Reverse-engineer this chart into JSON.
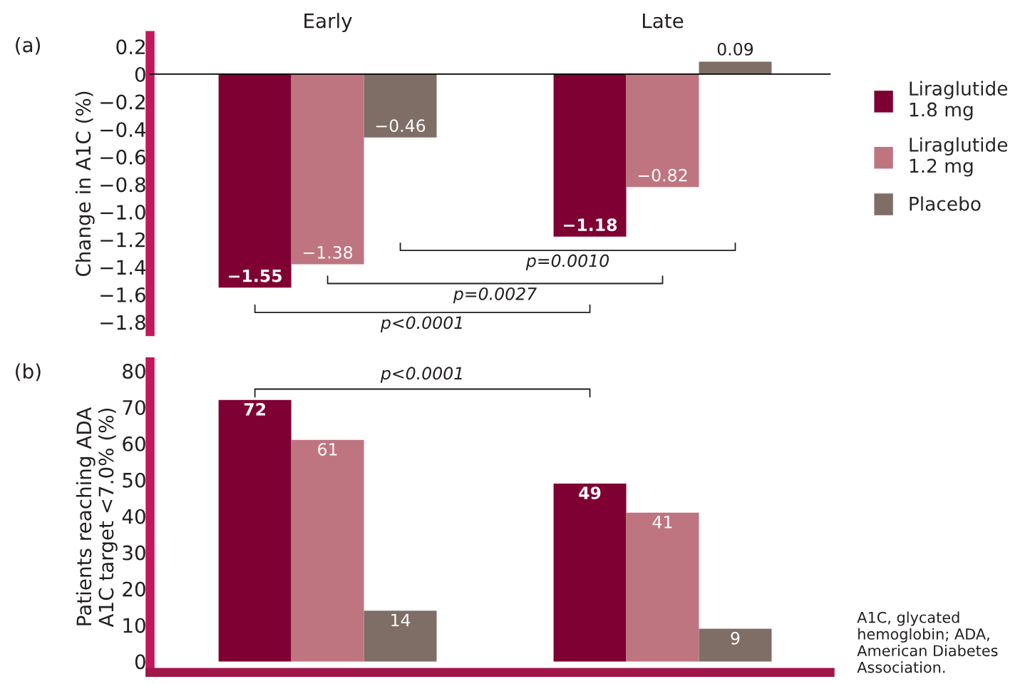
{
  "chart_data": [
    {
      "type": "bar",
      "categories": [
        "Early",
        "Late"
      ],
      "ylabel": "Change in A1C (%)",
      "ylim": [
        -1.87,
        0.28
      ],
      "yticks": [
        {
          "value": 0.2,
          "label": "0.2"
        },
        0,
        {
          "value": -0.2,
          "label": "−0.2"
        },
        {
          "value": -0.4,
          "label": "−0.4"
        },
        {
          "value": -0.6,
          "label": "−0.6"
        },
        {
          "value": -0.8,
          "label": "−0.8"
        },
        {
          "value": -1.0,
          "label": "−1.0"
        },
        {
          "value": -1.2,
          "label": "−1.2"
        },
        {
          "value": -1.4,
          "label": "−1.4"
        },
        {
          "value": -1.6,
          "label": "−1.6"
        },
        {
          "value": -1.8,
          "label": "−1.8"
        }
      ],
      "series": [
        {
          "name": "Liraglutide\n1.8 mg",
          "color": "#7f0032",
          "values": [
            -1.55,
            -1.18
          ]
        },
        {
          "name": "Liraglutide\n1.2 mg",
          "color": "#bf7580",
          "values": [
            -1.38,
            -0.82
          ]
        },
        {
          "name": "Placebo",
          "color": "#7f6e66",
          "values": [
            -0.46,
            0.09
          ]
        }
      ],
      "annotations": [
        "(a)",
        "p=0.0010",
        "p=0.0027",
        "p<0.0001"
      ],
      "data_labels": true,
      "legend": "right",
      "grid": false
    },
    {
      "type": "bar",
      "categories": [
        null,
        null
      ],
      "ylabel": "Patients reaching ADA\nA1C target <7.0% (%)",
      "ylim": [
        -3,
        82.5
      ],
      "yticks": [
        0,
        10,
        20,
        30,
        40,
        50,
        60,
        70,
        80
      ],
      "series": [
        {
          "color": "#7f0032",
          "values": [
            72,
            49
          ]
        },
        {
          "color": "#bf7580",
          "values": [
            61,
            41
          ]
        },
        {
          "color": "#7f6e66",
          "values": [
            14,
            9
          ]
        }
      ],
      "annotations": [
        "(b)",
        "p<0.0001",
        "A1C, glycated hemoglobin; ADA, American Diabetes Association."
      ],
      "data_labels": true,
      "legend": false,
      "grid": false,
      "tick_labels": "y"
    }
  ]
}
